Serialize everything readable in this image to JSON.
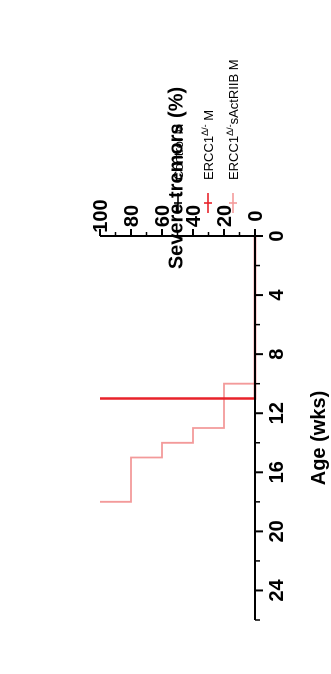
{
  "chart_data": {
    "type": "line",
    "subtype": "step",
    "orientation": "rotated-90-clockwise",
    "xlabel": "Age (wks)",
    "ylabel": "Severe tremors (%)",
    "xlim": [
      0,
      26
    ],
    "ylim": [
      0,
      100
    ],
    "x_ticks": [
      "0",
      "4",
      "8",
      "12",
      "16",
      "20",
      "24"
    ],
    "y_ticks": [
      "0",
      "20",
      "40",
      "60",
      "80",
      "100"
    ],
    "grid": false,
    "legend_position": "top",
    "series": [
      {
        "name": "Control M",
        "color": "#000000",
        "points": [
          [
            0,
            0
          ],
          [
            11,
            0
          ]
        ]
      },
      {
        "name": "ERCC1Δ/- M",
        "name_base": "ERCC1",
        "name_sup": "Δ/-",
        "name_tail": " M",
        "color": "#e8222a",
        "points": [
          [
            0,
            0
          ],
          [
            11,
            0
          ],
          [
            11,
            100
          ]
        ]
      },
      {
        "name": "ERCC1Δ/-sActRIIB M",
        "name_base": "ERCC1",
        "name_sup": "Δ/-",
        "name_tail": "sActRIIB M",
        "color": "#f39a9a",
        "points": [
          [
            0,
            0
          ],
          [
            10,
            0
          ],
          [
            10,
            20
          ],
          [
            13,
            20
          ],
          [
            13,
            40
          ],
          [
            14,
            40
          ],
          [
            14,
            60
          ],
          [
            15,
            60
          ],
          [
            15,
            80
          ],
          [
            18,
            80
          ],
          [
            18,
            100
          ]
        ]
      }
    ]
  }
}
